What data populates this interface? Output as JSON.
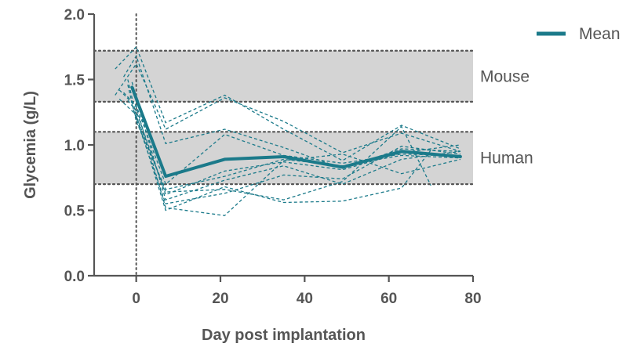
{
  "chart_data": {
    "type": "line",
    "xlabel": "Day post implantation",
    "ylabel": "Glycemia (g/L)",
    "xlim": [
      -10,
      80
    ],
    "ylim": [
      0,
      2
    ],
    "xticks": [
      0,
      20,
      40,
      60,
      80
    ],
    "yticks": [
      0.0,
      0.5,
      1.0,
      1.5,
      2.0
    ],
    "ytick_labels": [
      "0.0",
      "0.5",
      "1.0",
      "1.5",
      "2.0"
    ],
    "reference_line_x": 0,
    "bands": [
      {
        "label": "Mouse",
        "ymin": 1.33,
        "ymax": 1.72,
        "color": "#d4d4d4"
      },
      {
        "label": "Human",
        "ymin": 0.7,
        "ymax": 1.1,
        "color": "#d4d4d4"
      }
    ],
    "legend": {
      "label": "Mean",
      "position": "top-right"
    },
    "colors": {
      "series": "#1b7a8a",
      "axis": "#555555",
      "band_border": "#555555"
    },
    "mean_series": {
      "name": "Mean",
      "x": [
        -1,
        7,
        21,
        35,
        49,
        63,
        77
      ],
      "y": [
        1.44,
        0.76,
        0.89,
        0.91,
        0.83,
        0.95,
        0.91
      ]
    },
    "individual_series": [
      {
        "x": [
          -5,
          0,
          7,
          21,
          35,
          49,
          63,
          77
        ],
        "y": [
          1.58,
          1.75,
          1.17,
          1.38,
          1.12,
          0.88,
          1.15,
          0.97
        ]
      },
      {
        "x": [
          -5,
          0,
          7,
          21,
          35,
          49,
          63,
          77
        ],
        "y": [
          1.38,
          1.62,
          1.12,
          1.36,
          1.18,
          0.94,
          1.09,
          0.95
        ]
      },
      {
        "x": [
          -3,
          0,
          7,
          21,
          35,
          49,
          63,
          77
        ],
        "y": [
          1.52,
          1.68,
          1.01,
          1.12,
          0.98,
          0.82,
          0.97,
          0.95
        ]
      },
      {
        "x": [
          -3,
          0,
          7,
          21,
          35,
          49,
          63,
          77
        ],
        "y": [
          1.4,
          1.3,
          0.7,
          1.08,
          0.92,
          0.86,
          0.93,
          0.92
        ]
      },
      {
        "x": [
          -2,
          0,
          7,
          21,
          35,
          49,
          63,
          77
        ],
        "y": [
          1.46,
          1.18,
          0.66,
          0.76,
          0.89,
          0.84,
          0.92,
          0.9
        ]
      },
      {
        "x": [
          -2,
          0,
          7,
          21,
          35,
          49,
          63,
          77
        ],
        "y": [
          1.34,
          1.26,
          0.62,
          0.8,
          0.87,
          0.81,
          0.94,
          1.0
        ]
      },
      {
        "x": [
          -1,
          0,
          7,
          21,
          35,
          49,
          63,
          77
        ],
        "y": [
          1.48,
          1.36,
          0.58,
          0.73,
          0.84,
          0.7,
          0.89,
          0.95
        ]
      },
      {
        "x": [
          -1,
          0,
          7,
          21,
          35,
          49,
          63,
          77
        ],
        "y": [
          1.31,
          1.2,
          0.55,
          0.63,
          0.77,
          0.74,
          0.99,
          0.93
        ]
      },
      {
        "x": [
          -4,
          0,
          7,
          21,
          35,
          49,
          63,
          77
        ],
        "y": [
          1.42,
          1.29,
          0.52,
          0.46,
          0.88,
          0.93,
          0.78,
          0.89
        ]
      },
      {
        "x": [
          -4,
          0,
          7,
          21,
          35,
          49,
          63,
          70
        ],
        "y": [
          1.35,
          1.23,
          0.5,
          0.68,
          0.56,
          0.57,
          0.67,
          0.96
        ]
      },
      {
        "x": [
          -2,
          0,
          7,
          21,
          35,
          49,
          63,
          70
        ],
        "y": [
          1.5,
          1.22,
          0.64,
          0.66,
          0.58,
          0.72,
          1.14,
          0.69
        ]
      }
    ]
  }
}
